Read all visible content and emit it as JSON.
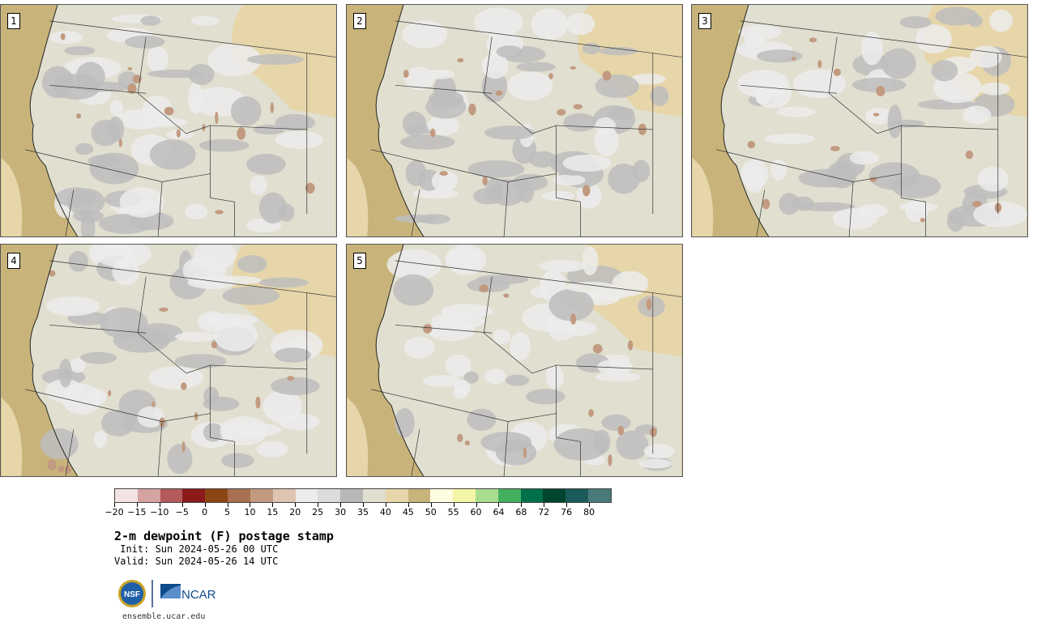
{
  "panels": [
    {
      "label": "1"
    },
    {
      "label": "2"
    },
    {
      "label": "3"
    },
    {
      "label": "4"
    },
    {
      "label": "5"
    }
  ],
  "colorbar": {
    "colors": [
      "#f3e3e3",
      "#d6a3a3",
      "#b45a5a",
      "#8b1a1a",
      "#8b4513",
      "#a87050",
      "#c29a80",
      "#dfc4b2",
      "#ececec",
      "#dcdcdc",
      "#b8b8b8",
      "#e0dfd0",
      "#e6d6aa",
      "#c8b47a",
      "#fffde0",
      "#f5f5a8",
      "#a8dd90",
      "#43b060",
      "#00704a",
      "#004530",
      "#1a5a5a",
      "#4a7a7a"
    ],
    "tick_labels": [
      "−20",
      "−15",
      "−10",
      "−5",
      "0",
      "5",
      "10",
      "15",
      "20",
      "25",
      "30",
      "35",
      "40",
      "45",
      "50",
      "55",
      "60",
      "64",
      "68",
      "72",
      "76",
      "80"
    ]
  },
  "text": {
    "title": "2-m dewpoint (F) postage stamp",
    "init": " Init: Sun 2024-05-26 00 UTC",
    "valid": "Valid: Sun 2024-05-26 14 UTC",
    "website": "ensemble.ucar.edu"
  },
  "logos": {
    "nsf": "NSF",
    "ncar": "NCAR"
  },
  "map_colors": {
    "ocean": "#c8b47a",
    "land_light": "#e0dfd0",
    "land_gray": "#bdbdbd",
    "land_white": "#ececec",
    "tan": "#e6d6aa",
    "brown": "#c29a80"
  }
}
